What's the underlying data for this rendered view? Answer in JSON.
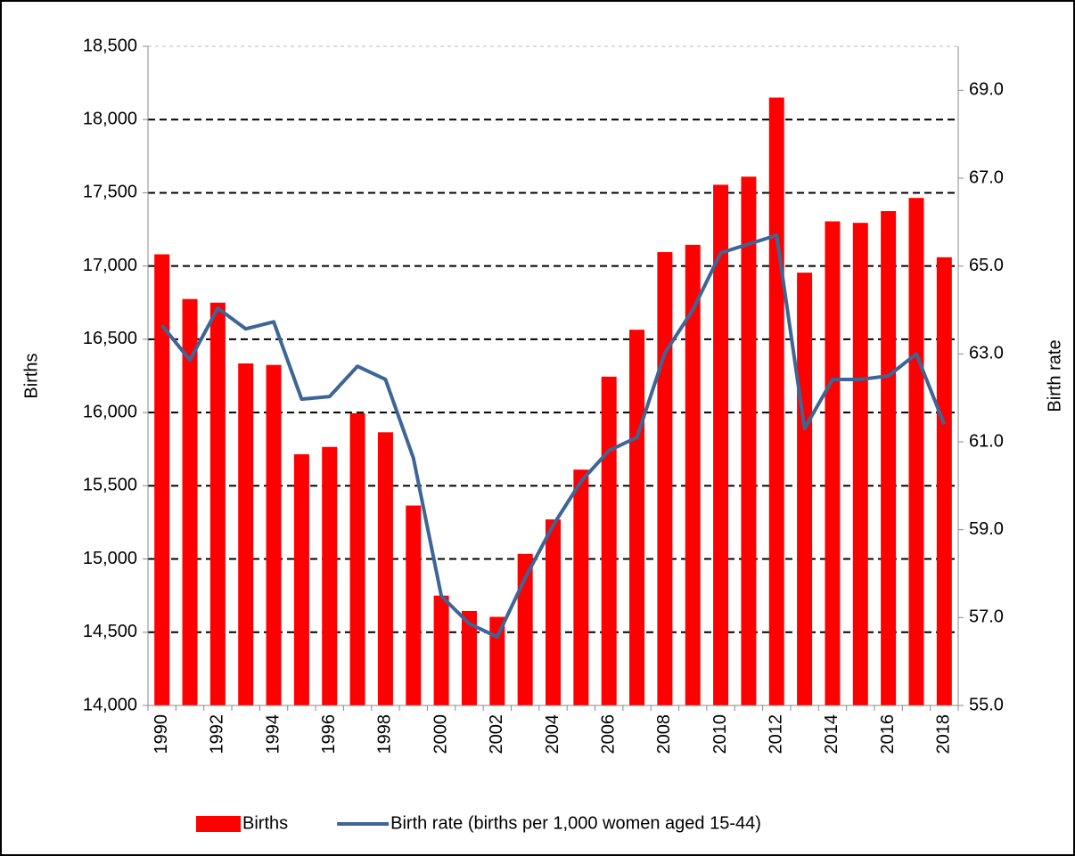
{
  "chart_data": {
    "type": "bar_line",
    "categories": [
      "1990",
      null,
      "1992",
      null,
      "1994",
      null,
      "1996",
      null,
      "1998",
      null,
      "2000",
      null,
      "2002",
      null,
      "2004",
      null,
      "2006",
      null,
      "2008",
      null,
      "2010",
      null,
      "2012",
      null,
      "2014",
      null,
      "2016",
      null,
      "2018"
    ],
    "series": [
      {
        "name": "Births",
        "color": "#ff0000",
        "type": "bar",
        "axis": "y",
        "values": [
          17080,
          16775,
          16750,
          16335,
          16325,
          15715,
          15765,
          15995,
          15865,
          15365,
          14750,
          14645,
          14605,
          15035,
          15270,
          15610,
          16245,
          16565,
          17095,
          17145,
          17555,
          17610,
          18150,
          16955,
          17305,
          17295,
          17375,
          17465,
          17060
        ]
      },
      {
        "name": "Birth rate (births per 1,000 women aged 15-44)",
        "color": "#3d6596",
        "type": "line",
        "axis": "y2",
        "values": [
          63.65,
          62.86,
          64.04,
          63.57,
          63.73,
          61.97,
          62.03,
          62.72,
          62.42,
          60.63,
          57.49,
          56.86,
          56.56,
          57.9,
          59.1,
          60.1,
          60.8,
          61.1,
          63.02,
          64.0,
          65.3,
          65.5,
          65.7,
          61.3,
          62.42,
          62.42,
          62.5,
          63.0,
          61.4
        ]
      }
    ],
    "ylabel": "Births",
    "y2label": "Birth rate",
    "ylim": [
      14000,
      18500
    ],
    "yticks": [
      {
        "value": 14000,
        "label": "14,000"
      },
      {
        "value": 14500,
        "label": "14,500"
      },
      {
        "value": 15000,
        "label": "15,000"
      },
      {
        "value": 15500,
        "label": "15,500"
      },
      {
        "value": 16000,
        "label": "16,000"
      },
      {
        "value": 16500,
        "label": "16,500"
      },
      {
        "value": 17000,
        "label": "17,000"
      },
      {
        "value": 17500,
        "label": "17,500"
      },
      {
        "value": 18000,
        "label": "18,000"
      },
      {
        "value": 18500,
        "label": "18,500"
      }
    ],
    "y2lim": [
      55,
      70
    ],
    "y2ticks": [
      {
        "value": 55,
        "label": "55.0"
      },
      {
        "value": 57,
        "label": "57.0"
      },
      {
        "value": 59,
        "label": "59.0"
      },
      {
        "value": 61,
        "label": "61.0"
      },
      {
        "value": 63,
        "label": "63.0"
      },
      {
        "value": 65,
        "label": "65.0"
      },
      {
        "value": 67,
        "label": "67.0"
      },
      {
        "value": 69,
        "label": "69.0"
      }
    ],
    "grid": true,
    "legend": "bottom"
  }
}
